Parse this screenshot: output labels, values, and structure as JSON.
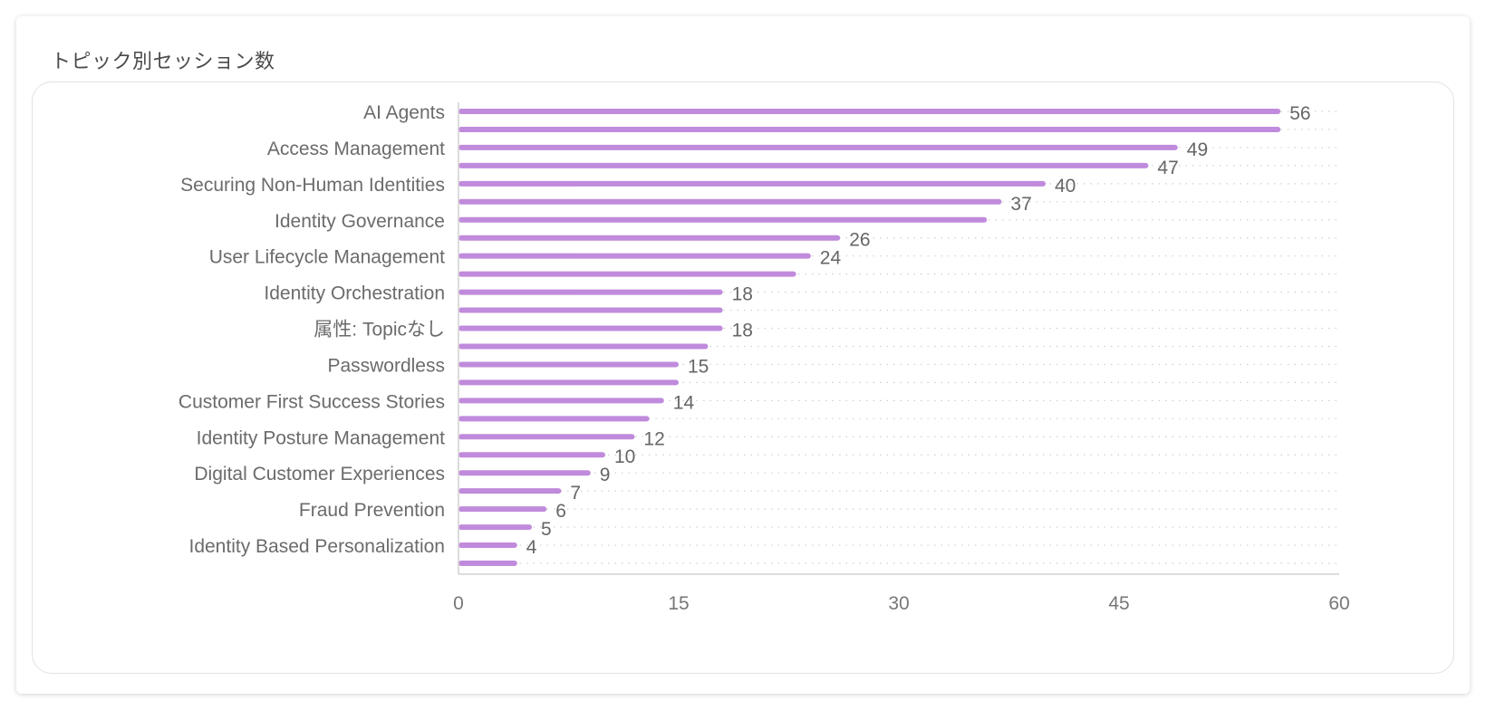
{
  "panel": {
    "title": "トピック別セッション数"
  },
  "colors": {
    "bar": "#c08bdc",
    "grid": "#cfcfcf",
    "axis": "#d0d0d0"
  },
  "chart_data": {
    "type": "bar",
    "orientation": "horizontal",
    "title": "",
    "xlabel": "",
    "ylabel": "",
    "xlim": [
      0,
      60
    ],
    "x_ticks": [
      0,
      15,
      30,
      45,
      60
    ],
    "grid": "dotted vertical-extent horizontal lines",
    "category_labels": [
      "AI Agents",
      "Access Management",
      "Securing Non-Human Identities",
      "Identity Governance",
      "User Lifecycle Management",
      "Identity Orchestration",
      "属性: Topicなし",
      "Passwordless",
      "Customer First Success Stories",
      "Identity Posture Management",
      "Digital Customer Experiences",
      "Fraud Prevention",
      "Identity Based Personalization"
    ],
    "bars": [
      {
        "value": 56,
        "label": "56"
      },
      {
        "value": 56,
        "label": ""
      },
      {
        "value": 49,
        "label": "49"
      },
      {
        "value": 47,
        "label": "47"
      },
      {
        "value": 40,
        "label": "40"
      },
      {
        "value": 37,
        "label": "37"
      },
      {
        "value": 36,
        "label": ""
      },
      {
        "value": 26,
        "label": "26"
      },
      {
        "value": 24,
        "label": "24"
      },
      {
        "value": 23,
        "label": ""
      },
      {
        "value": 18,
        "label": "18"
      },
      {
        "value": 18,
        "label": ""
      },
      {
        "value": 18,
        "label": "18"
      },
      {
        "value": 17,
        "label": ""
      },
      {
        "value": 15,
        "label": "15"
      },
      {
        "value": 15,
        "label": ""
      },
      {
        "value": 14,
        "label": "14"
      },
      {
        "value": 13,
        "label": ""
      },
      {
        "value": 12,
        "label": "12"
      },
      {
        "value": 10,
        "label": "10"
      },
      {
        "value": 9,
        "label": "9"
      },
      {
        "value": 7,
        "label": "7"
      },
      {
        "value": 6,
        "label": "6"
      },
      {
        "value": 5,
        "label": "5"
      },
      {
        "value": 4,
        "label": "4"
      },
      {
        "value": 4,
        "label": ""
      }
    ]
  }
}
